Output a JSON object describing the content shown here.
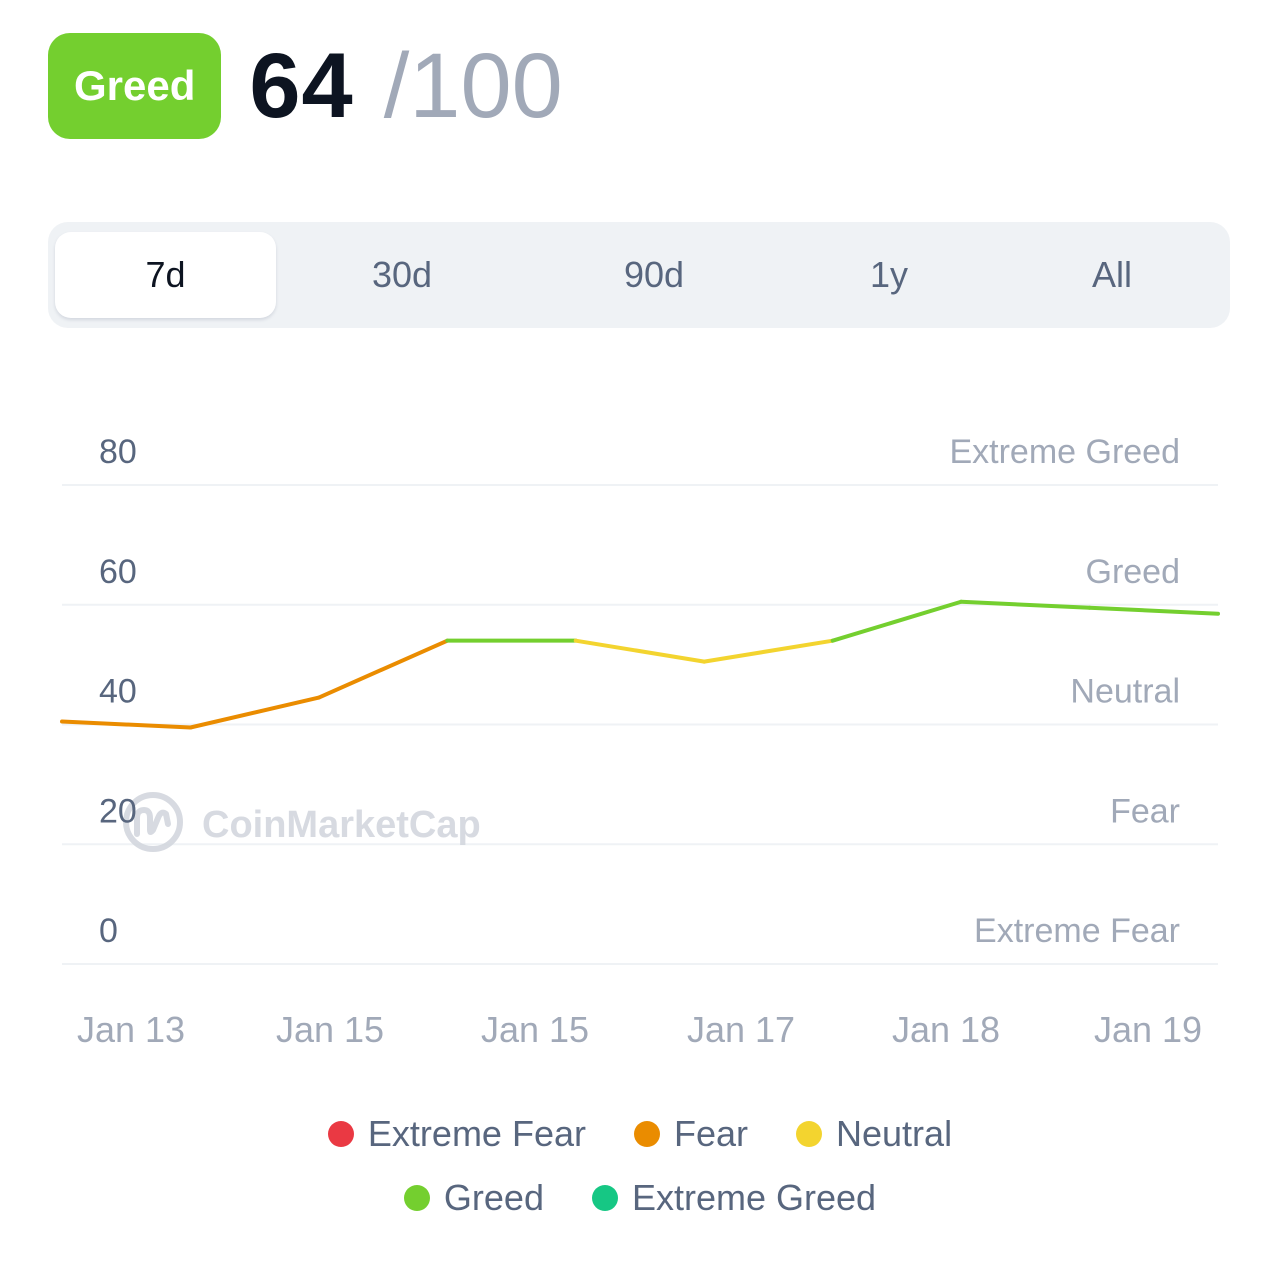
{
  "header": {
    "badge_label": "Greed",
    "badge_color": "#74cf2f",
    "score": "64",
    "max": "/100"
  },
  "tabs": [
    {
      "label": "7d",
      "active": true
    },
    {
      "label": "30d",
      "active": false
    },
    {
      "label": "90d",
      "active": false
    },
    {
      "label": "1y",
      "active": false
    },
    {
      "label": "All",
      "active": false
    }
  ],
  "watermark": {
    "text": "CoinMarketCap",
    "icon": "coinmarketcap-logo-icon"
  },
  "chart_data": {
    "type": "line",
    "title": "",
    "xlabel": "",
    "ylabel": "",
    "ylim": [
      0,
      80
    ],
    "yticks": [
      0,
      20,
      40,
      60,
      80
    ],
    "grid": true,
    "x_labels": [
      "Jan 13",
      "Jan 15",
      "Jan 15",
      "Jan 17",
      "Jan 18",
      "Jan 19"
    ],
    "zone_labels": [
      {
        "label": "Extreme Greed",
        "value": 80
      },
      {
        "label": "Greed",
        "value": 60
      },
      {
        "label": "Neutral",
        "value": 40
      },
      {
        "label": "Fear",
        "value": 20
      },
      {
        "label": "Extreme Fear",
        "value": 0
      }
    ],
    "series": [
      {
        "values": [
          40.5,
          39.5,
          44.5,
          54,
          54,
          50.5,
          54,
          60.5,
          59.5,
          58.5
        ]
      }
    ],
    "thresholds": [
      {
        "min": 0,
        "color": "#ea3943",
        "label": "Extreme Fear"
      },
      {
        "min": 25,
        "color": "#ea8c00",
        "label": "Fear"
      },
      {
        "min": 47,
        "color": "#f3d42f",
        "label": "Neutral"
      },
      {
        "min": 54,
        "color": "#74cf2f",
        "label": "Greed"
      },
      {
        "min": 76,
        "color": "#16c784",
        "label": "Extreme Greed"
      }
    ]
  },
  "legend": [
    {
      "label": "Extreme Fear",
      "color": "#ea3943"
    },
    {
      "label": "Fear",
      "color": "#ea8c00"
    },
    {
      "label": "Neutral",
      "color": "#f3d42f"
    },
    {
      "label": "Greed",
      "color": "#74cf2f"
    },
    {
      "label": "Extreme Greed",
      "color": "#16c784"
    }
  ]
}
